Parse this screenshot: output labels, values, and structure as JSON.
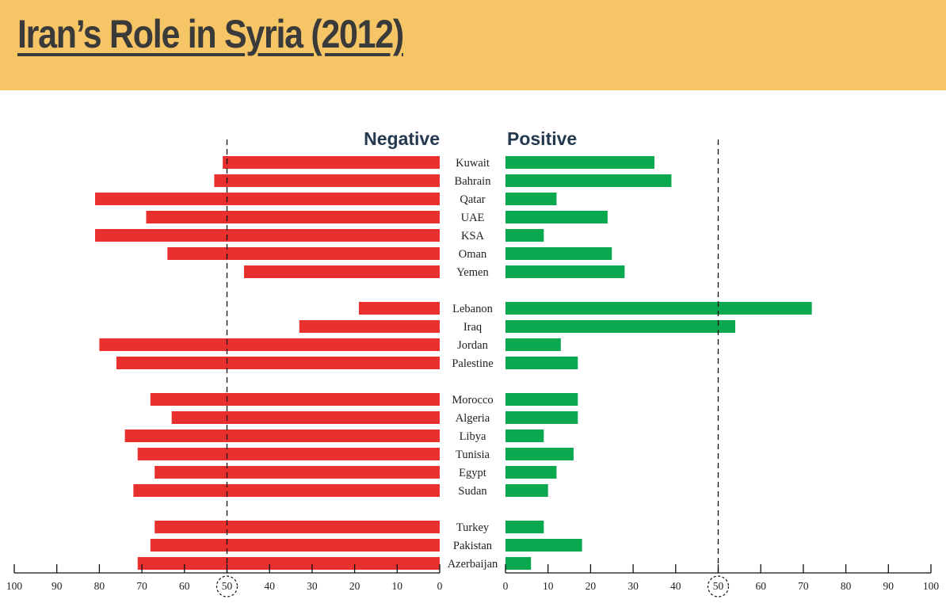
{
  "title": "Iran’s Role in Syria (2012)",
  "colors": {
    "negative": "#e8302f",
    "positive": "#0aa84f",
    "header_bg": "#f6c566",
    "heading": "#24394f"
  },
  "chart_data": {
    "type": "bar",
    "title": "Iran’s Role in Syria (2012)",
    "orientation": "horizontal-diverging",
    "xlim": [
      0,
      100
    ],
    "ticks": [
      0,
      10,
      20,
      30,
      40,
      50,
      60,
      70,
      80,
      90,
      100
    ],
    "reference_value": 50,
    "categories": [
      "Kuwait",
      "Bahrain",
      "Qatar",
      "UAE",
      "KSA",
      "Oman",
      "Yemen",
      "Lebanon",
      "Iraq",
      "Jordan",
      "Palestine",
      "Morocco",
      "Algeria",
      "Libya",
      "Tunisia",
      "Egypt",
      "Sudan",
      "Turkey",
      "Pakistan",
      "Azerbaijan"
    ],
    "groups": [
      [
        "Kuwait",
        "Bahrain",
        "Qatar",
        "UAE",
        "KSA",
        "Oman",
        "Yemen"
      ],
      [
        "Lebanon",
        "Iraq",
        "Jordan",
        "Palestine"
      ],
      [
        "Morocco",
        "Algeria",
        "Libya",
        "Tunisia",
        "Egypt",
        "Sudan"
      ],
      [
        "Turkey",
        "Pakistan",
        "Azerbaijan"
      ]
    ],
    "series": [
      {
        "name": "Negative",
        "values": [
          51,
          53,
          81,
          69,
          81,
          64,
          46,
          19,
          33,
          80,
          76,
          68,
          63,
          74,
          71,
          67,
          72,
          67,
          68,
          71
        ]
      },
      {
        "name": "Positive",
        "values": [
          35,
          39,
          12,
          24,
          9,
          25,
          28,
          72,
          54,
          13,
          17,
          17,
          17,
          9,
          16,
          12,
          10,
          9,
          18,
          6
        ]
      }
    ]
  }
}
